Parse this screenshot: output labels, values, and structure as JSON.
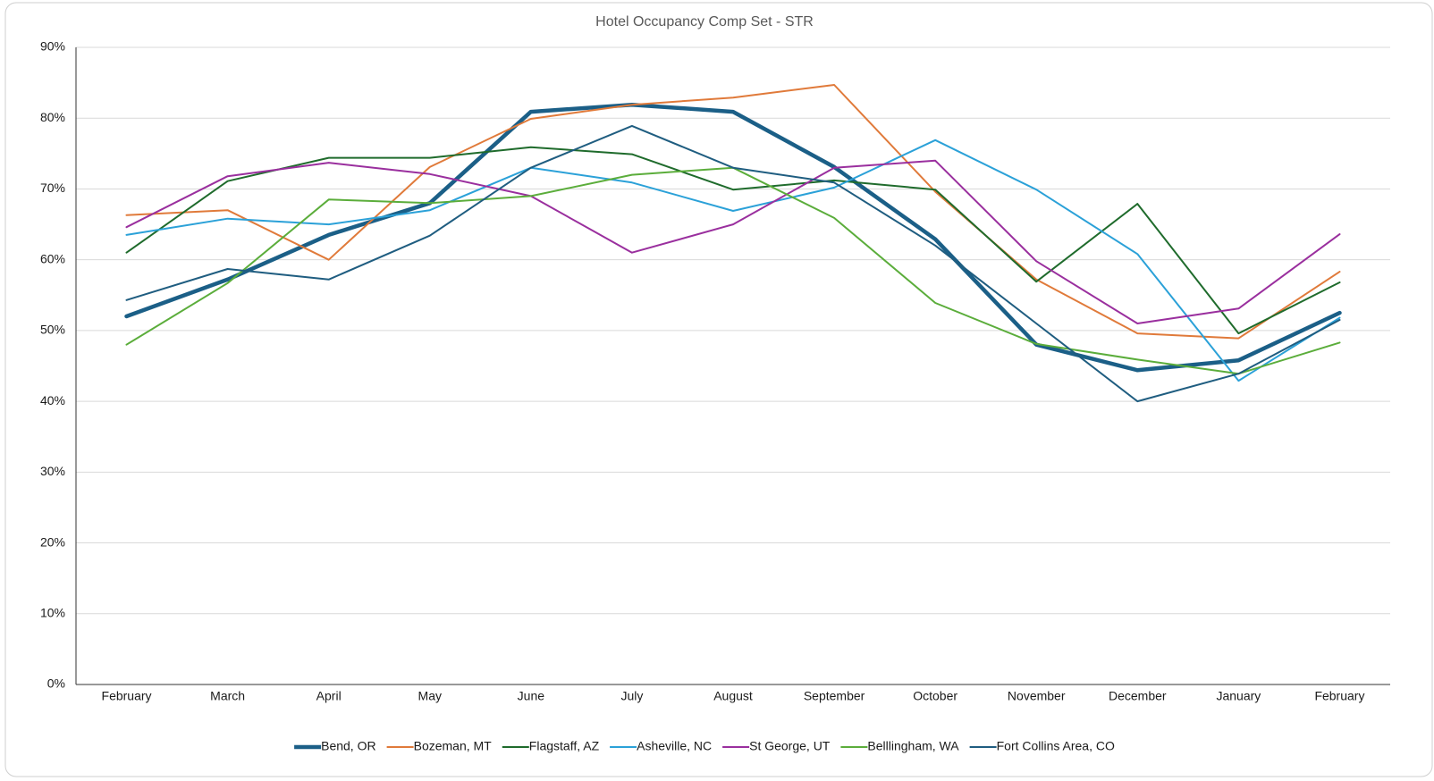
{
  "chart_data": {
    "type": "line",
    "title": "Hotel Occupancy Comp Set - STR",
    "categories": [
      "February",
      "March",
      "April",
      "May",
      "June",
      "July",
      "August",
      "September",
      "October",
      "November",
      "December",
      "January",
      "February"
    ],
    "ylim": [
      0,
      90
    ],
    "yticks": [
      {
        "value": 0,
        "label": "0%"
      },
      {
        "value": 10,
        "label": "10%"
      },
      {
        "value": 20,
        "label": "20%"
      },
      {
        "value": 30,
        "label": "30%"
      },
      {
        "value": 40,
        "label": "40%"
      },
      {
        "value": 50,
        "label": "50%"
      },
      {
        "value": 60,
        "label": "60%"
      },
      {
        "value": 70,
        "label": "70%"
      },
      {
        "value": 80,
        "label": "80%"
      },
      {
        "value": 90,
        "label": "90%"
      }
    ],
    "grid": true,
    "legend": "bottom",
    "series": [
      {
        "name": "Bend, OR",
        "color": "#1b5f87",
        "line_width": 4.5,
        "values": [
          52.0,
          57.2,
          63.5,
          68.0,
          80.9,
          81.9,
          80.9,
          73.1,
          62.9,
          48.0,
          44.4,
          45.8,
          52.5
        ]
      },
      {
        "name": "Bozeman, MT",
        "color": "#e07a3a",
        "line_width": 2,
        "values": [
          66.3,
          67.0,
          60.0,
          73.1,
          79.9,
          81.9,
          82.9,
          84.7,
          69.6,
          57.2,
          49.6,
          48.9,
          58.3
        ]
      },
      {
        "name": "Flagstaff, AZ",
        "color": "#1f6b2c",
        "line_width": 2,
        "values": [
          61.0,
          71.1,
          74.4,
          74.4,
          75.9,
          74.9,
          69.9,
          71.2,
          69.9,
          56.9,
          67.9,
          49.6,
          56.8
        ]
      },
      {
        "name": "Asheville, NC",
        "color": "#2ba1d8",
        "line_width": 2,
        "values": [
          63.5,
          65.8,
          65.0,
          67.0,
          73.0,
          70.9,
          66.9,
          70.2,
          76.9,
          69.9,
          60.8,
          42.9,
          51.8
        ]
      },
      {
        "name": "St George, UT",
        "color": "#9a2f9e",
        "line_width": 2,
        "values": [
          64.6,
          71.8,
          73.7,
          72.1,
          69.0,
          61.0,
          65.0,
          73.0,
          74.0,
          59.8,
          51.0,
          53.1,
          63.6
        ]
      },
      {
        "name": "Belllingham, WA",
        "color": "#5bad3b",
        "line_width": 2,
        "values": [
          48.0,
          56.7,
          68.5,
          68.0,
          69.0,
          72.0,
          73.0,
          65.9,
          53.9,
          48.1,
          45.9,
          43.9,
          48.3
        ]
      },
      {
        "name": "Fort Collins Area, CO",
        "color": "#1f5d80",
        "line_width": 2,
        "values": [
          54.3,
          58.7,
          57.2,
          63.4,
          73.0,
          78.9,
          73.0,
          70.9,
          62.0,
          51.0,
          40.0,
          43.9,
          51.5
        ]
      }
    ]
  }
}
